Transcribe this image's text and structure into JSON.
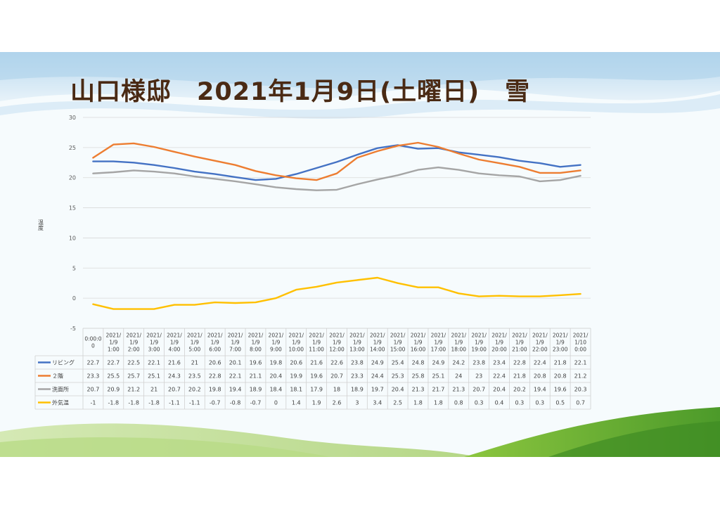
{
  "slide": {
    "title": "山口様邸　2021年1月9日(土曜日)　雪"
  },
  "colors": {
    "living": "#4472c4",
    "floor2": "#ed7d31",
    "washroom": "#a5a5a5",
    "outdoor": "#ffc000"
  },
  "chart_data": {
    "type": "line",
    "ylabel": "温度",
    "ylim": [
      -5,
      30
    ],
    "yticks": [
      -5,
      0,
      5,
      10,
      15,
      20,
      25,
      30
    ],
    "grid": true,
    "legend": "data-table",
    "categories": [
      [
        "0:00:0",
        "0"
      ],
      [
        "2021/",
        "1/9",
        "1:00"
      ],
      [
        "2021/",
        "1/9",
        "2:00"
      ],
      [
        "2021/",
        "1/9",
        "3:00"
      ],
      [
        "2021/",
        "1/9",
        "4:00"
      ],
      [
        "2021/",
        "1/9",
        "5:00"
      ],
      [
        "2021/",
        "1/9",
        "6:00"
      ],
      [
        "2021/",
        "1/9",
        "7:00"
      ],
      [
        "2021/",
        "1/9",
        "8:00"
      ],
      [
        "2021/",
        "1/9",
        "9:00"
      ],
      [
        "2021/",
        "1/9",
        "10:00"
      ],
      [
        "2021/",
        "1/9",
        "11:00"
      ],
      [
        "2021/",
        "1/9",
        "12:00"
      ],
      [
        "2021/",
        "1/9",
        "13:00"
      ],
      [
        "2021/",
        "1/9",
        "14:00"
      ],
      [
        "2021/",
        "1/9",
        "15:00"
      ],
      [
        "2021/",
        "1/9",
        "16:00"
      ],
      [
        "2021/",
        "1/9",
        "17:00"
      ],
      [
        "2021/",
        "1/9",
        "18:00"
      ],
      [
        "2021/",
        "1/9",
        "19:00"
      ],
      [
        "2021/",
        "1/9",
        "20:00"
      ],
      [
        "2021/",
        "1/9",
        "21:00"
      ],
      [
        "2021/",
        "1/9",
        "22:00"
      ],
      [
        "2021/",
        "1/9",
        "23:00"
      ],
      [
        "2021/",
        "1/10",
        "0:00"
      ]
    ],
    "series": [
      {
        "name": "リビング",
        "color": "#4472c4",
        "values": [
          22.7,
          22.7,
          22.5,
          22.1,
          21.6,
          21,
          20.6,
          20.1,
          19.6,
          19.8,
          20.6,
          21.6,
          22.6,
          23.8,
          24.9,
          25.4,
          24.8,
          24.9,
          24.2,
          23.8,
          23.4,
          22.8,
          22.4,
          21.8,
          22.1
        ]
      },
      {
        "name": "２階",
        "color": "#ed7d31",
        "values": [
          23.3,
          25.5,
          25.7,
          25.1,
          24.3,
          23.5,
          22.8,
          22.1,
          21.1,
          20.4,
          19.9,
          19.6,
          20.7,
          23.3,
          24.4,
          25.3,
          25.8,
          25.1,
          24,
          23,
          22.4,
          21.8,
          20.8,
          20.8,
          21.2
        ]
      },
      {
        "name": "洗面所",
        "color": "#a5a5a5",
        "values": [
          20.7,
          20.9,
          21.2,
          21,
          20.7,
          20.2,
          19.8,
          19.4,
          18.9,
          18.4,
          18.1,
          17.9,
          18,
          18.9,
          19.7,
          20.4,
          21.3,
          21.7,
          21.3,
          20.7,
          20.4,
          20.2,
          19.4,
          19.6,
          20.3
        ]
      },
      {
        "name": "外気温",
        "color": "#ffc000",
        "values": [
          -1,
          -1.8,
          -1.8,
          -1.8,
          -1.1,
          -1.1,
          -0.7,
          -0.8,
          -0.7,
          0,
          1.4,
          1.9,
          2.6,
          3,
          3.4,
          2.5,
          1.8,
          1.8,
          0.8,
          0.3,
          0.4,
          0.3,
          0.3,
          0.5,
          0.7
        ]
      }
    ]
  }
}
